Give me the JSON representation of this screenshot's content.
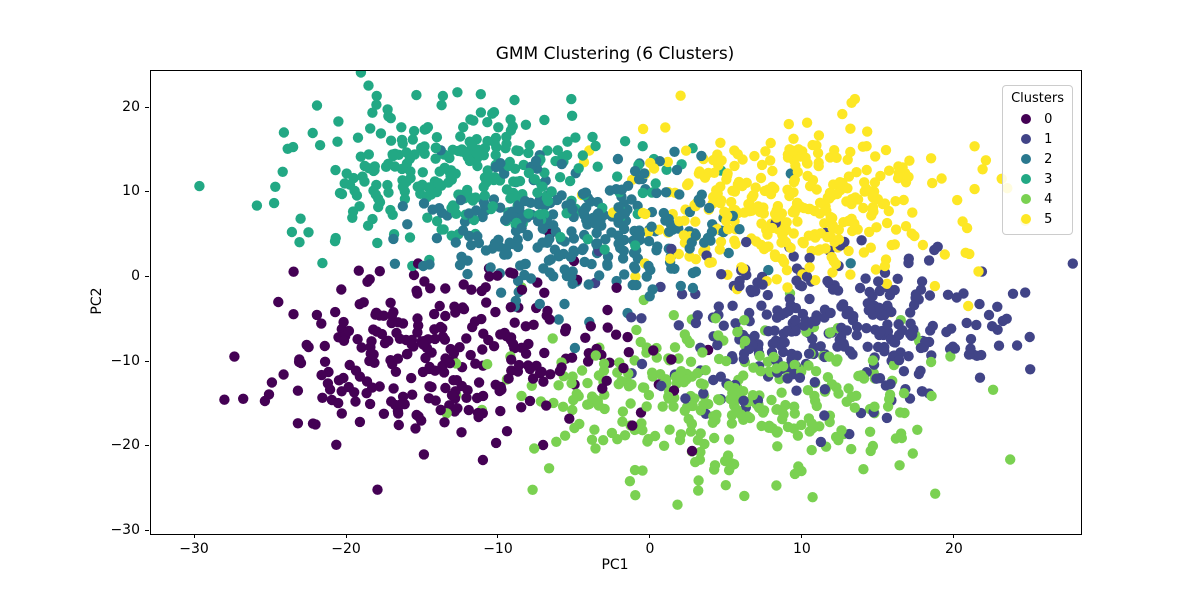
{
  "chart_data": {
    "type": "scatter",
    "title": "GMM Clustering (6 Clusters)",
    "xlabel": "PC1",
    "ylabel": "PC2",
    "xlim": [
      -32.9,
      28.3
    ],
    "ylim": [
      -30.3,
      24.4
    ],
    "xticks": [
      -30,
      -20,
      -10,
      0,
      10,
      20
    ],
    "xtick_labels": [
      "−30",
      "−20",
      "−10",
      "0",
      "10",
      "20"
    ],
    "yticks": [
      -30,
      -20,
      -10,
      0,
      10,
      20
    ],
    "ytick_labels": [
      "−30",
      "−20",
      "−10",
      "0",
      "10",
      "20"
    ],
    "grid": false,
    "marker_radius": 5.2,
    "seed": 42,
    "legend": {
      "title": "Clusters",
      "position": "upper right",
      "entries": [
        {
          "label": "0",
          "color": "#440154"
        },
        {
          "label": "1",
          "color": "#414487"
        },
        {
          "label": "2",
          "color": "#2a788e"
        },
        {
          "label": "3",
          "color": "#22a884"
        },
        {
          "label": "4",
          "color": "#7ad151"
        },
        {
          "label": "5",
          "color": "#fde725"
        }
      ]
    },
    "clusters": [
      {
        "label": "0",
        "color": "#440154",
        "n": 290,
        "center": [
          -13.8,
          -9.0
        ],
        "std": [
          6.3,
          4.9
        ]
      },
      {
        "label": "1",
        "color": "#414487",
        "n": 300,
        "center": [
          11.5,
          -6.0
        ],
        "std": [
          6.0,
          4.6
        ]
      },
      {
        "label": "2",
        "color": "#2a788e",
        "n": 280,
        "center": [
          -4.5,
          5.5
        ],
        "std": [
          5.2,
          4.4
        ]
      },
      {
        "label": "3",
        "color": "#22a884",
        "n": 300,
        "center": [
          -12.5,
          12.0
        ],
        "std": [
          5.8,
          4.3
        ]
      },
      {
        "label": "4",
        "color": "#7ad151",
        "n": 330,
        "center": [
          4.8,
          -14.3
        ],
        "std": [
          6.4,
          4.9
        ]
      },
      {
        "label": "5",
        "color": "#fde725",
        "n": 350,
        "center": [
          9.3,
          8.7
        ],
        "std": [
          5.4,
          4.3
        ]
      }
    ]
  }
}
